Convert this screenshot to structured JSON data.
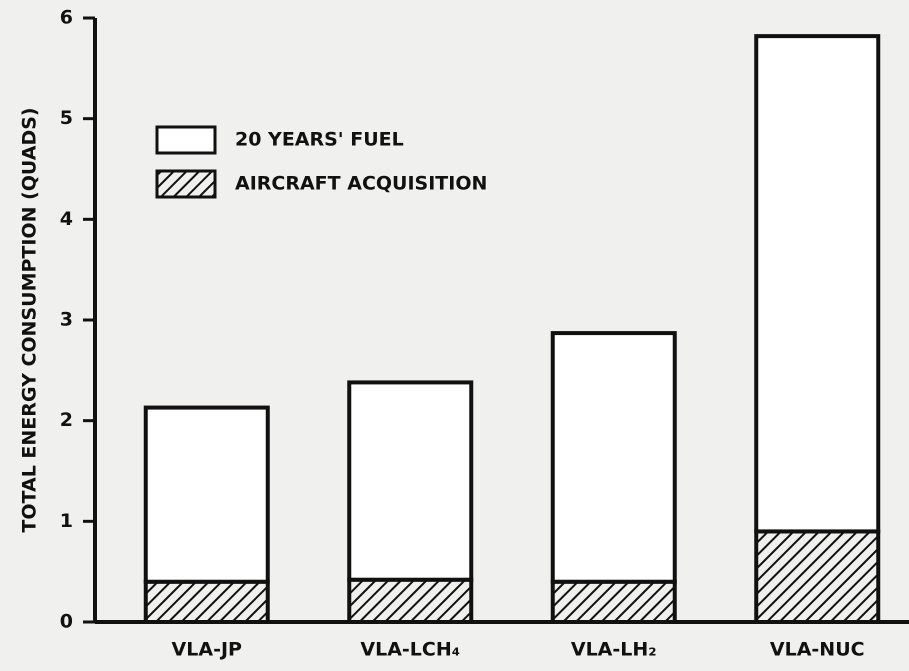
{
  "chart_data": {
    "type": "stacked-bar",
    "ylabel": "TOTAL ENERGY CONSUMPTION (QUADS)",
    "categories": [
      "VLA-JP",
      "VLA-LCH₄",
      "VLA-LH₂",
      "VLA-NUC"
    ],
    "series": [
      {
        "name": "AIRCRAFT ACQUISITION",
        "color": "#111111",
        "pattern": "hatch",
        "values": [
          0.4,
          0.42,
          0.4,
          0.9
        ]
      },
      {
        "name": "20 YEARS' FUEL",
        "color": "#ffffff",
        "pattern": "solid",
        "values": [
          1.73,
          1.96,
          2.47,
          4.92
        ]
      }
    ],
    "ylim": [
      0,
      6
    ],
    "yticks": [
      0,
      1,
      2,
      3,
      4,
      5,
      6
    ],
    "grid": false
  }
}
